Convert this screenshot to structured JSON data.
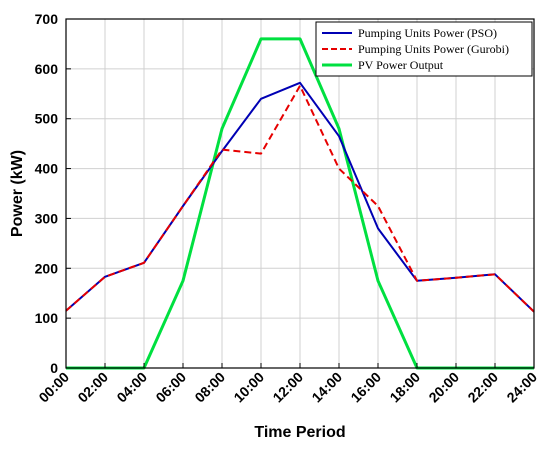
{
  "chart_data": {
    "type": "line",
    "title": "",
    "xlabel": "Time Period",
    "ylabel": "Power (kW)",
    "x": [
      "00:00",
      "02:00",
      "04:00",
      "06:00",
      "08:00",
      "10:00",
      "12:00",
      "14:00",
      "16:00",
      "18:00",
      "20:00",
      "22:00",
      "24:00"
    ],
    "x_ticks": [
      "00:00",
      "02:00",
      "04:00",
      "06:00",
      "08:00",
      "10:00",
      "12:00",
      "14:00",
      "16:00",
      "18:00",
      "20:00",
      "22:00",
      "24:00"
    ],
    "y_ticks": [
      0,
      100,
      200,
      300,
      400,
      500,
      600,
      700
    ],
    "ylim": [
      0,
      700
    ],
    "grid": true,
    "legend_position": "top-right",
    "series": [
      {
        "name": "Pumping Units Power (PSO)",
        "color": "#0000b4",
        "style": "solid",
        "values": [
          115,
          183,
          211,
          325,
          435,
          540,
          572,
          465,
          280,
          175,
          181,
          188,
          113
        ]
      },
      {
        "name": "Pumping Units Power (Gurobi)",
        "color": "#e60000",
        "style": "dashed",
        "values": [
          115,
          183,
          211,
          325,
          438,
          430,
          566,
          400,
          325,
          175,
          181,
          188,
          113
        ]
      },
      {
        "name": "PV Power Output",
        "color": "#00e040",
        "style": "solid",
        "values": [
          0,
          0,
          0,
          175,
          480,
          660,
          660,
          480,
          175,
          0,
          0,
          0,
          0
        ]
      }
    ]
  }
}
